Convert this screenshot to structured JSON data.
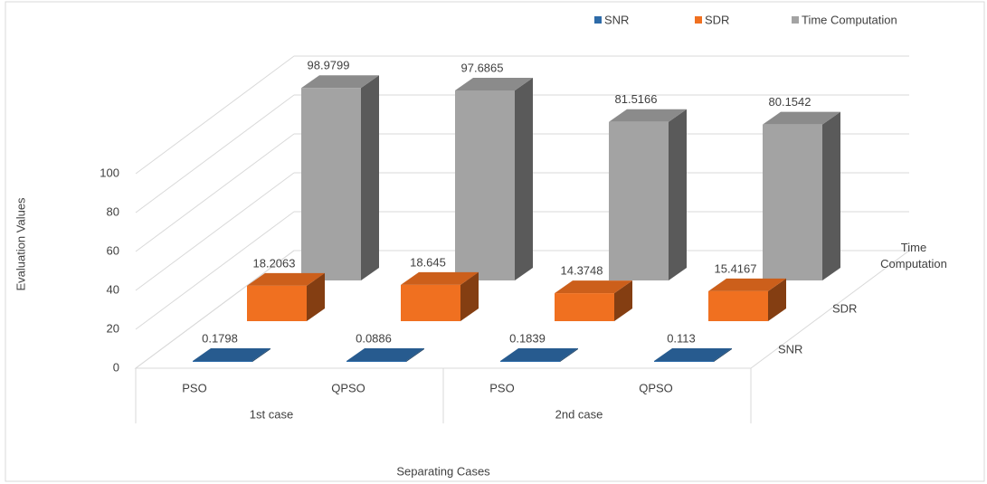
{
  "chart_data": {
    "type": "bar3d",
    "categories": [
      "PSO",
      "QPSO",
      "PSO",
      "QPSO"
    ],
    "groups": [
      "1st case",
      "2nd case"
    ],
    "series": [
      {
        "name": "SNR",
        "color": "#2e6ba8",
        "values": [
          0.1798,
          0.0886,
          0.1839,
          0.113
        ]
      },
      {
        "name": "SDR",
        "color": "#f07020",
        "values": [
          18.2063,
          18.645,
          14.3748,
          15.4167
        ]
      },
      {
        "name": "Time Computation",
        "color": "#a3a3a3",
        "values": [
          98.9799,
          97.6865,
          81.5166,
          80.1542
        ]
      }
    ],
    "xlabel": "Separating Cases",
    "ylabel": "Evaluation Values",
    "ylim": [
      0,
      100
    ],
    "yticks": [
      0,
      20,
      40,
      60,
      80,
      100
    ],
    "grid": true,
    "legend": "top"
  }
}
